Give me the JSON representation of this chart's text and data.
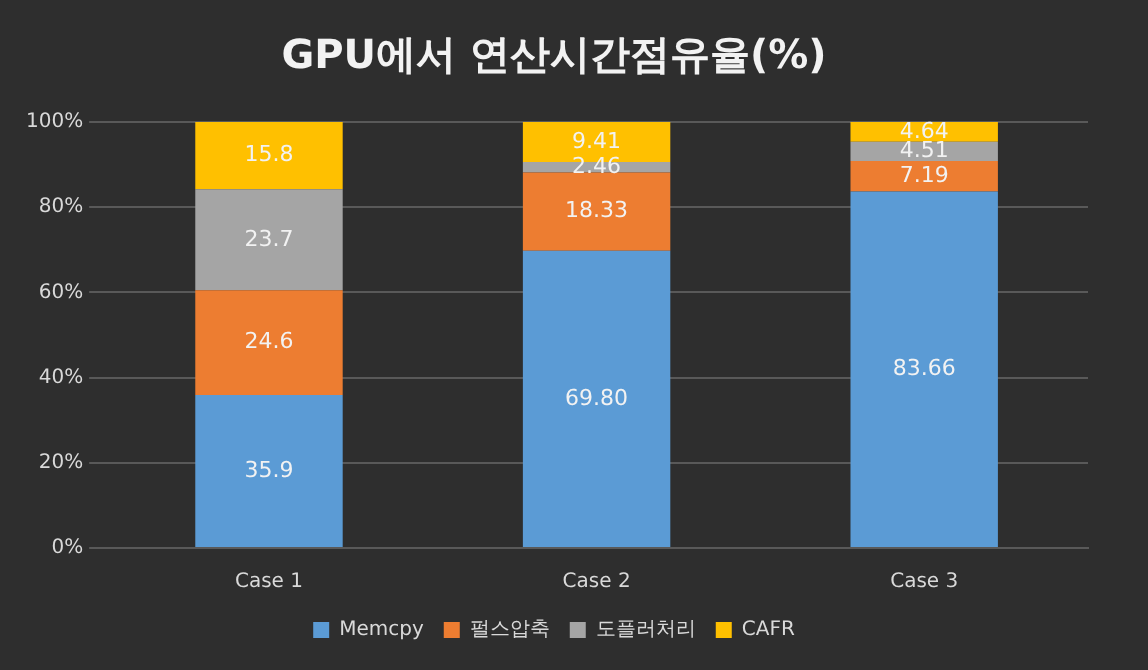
{
  "chart_data": {
    "type": "bar",
    "stacked": true,
    "title": "GPU에서 연산시간점유율(%)",
    "categories": [
      "Case 1",
      "Case 2",
      "Case 3"
    ],
    "series": [
      {
        "name": "Memcpy",
        "color": "#5b9bd5",
        "values": [
          35.9,
          69.8,
          83.66
        ]
      },
      {
        "name": "펄스압축",
        "color": "#ed7d31",
        "values": [
          24.6,
          18.33,
          7.19
        ]
      },
      {
        "name": "도플러처리",
        "color": "#a5a5a5",
        "values": [
          23.7,
          2.46,
          4.51
        ]
      },
      {
        "name": "CAFR",
        "color": "#ffc000",
        "values": [
          15.8,
          9.41,
          4.64
        ]
      }
    ],
    "value_labels": [
      [
        "35.9",
        "69.80",
        "83.66"
      ],
      [
        "24.6",
        "18.33",
        "7.19"
      ],
      [
        "23.7",
        "2.46",
        "4.51"
      ],
      [
        "15.8",
        "9.41",
        "4.64"
      ]
    ],
    "ylim": [
      0,
      100
    ],
    "yticks": [
      {
        "value": 0,
        "label": "0%"
      },
      {
        "value": 20,
        "label": "20%"
      },
      {
        "value": 40,
        "label": "40%"
      },
      {
        "value": 60,
        "label": "60%"
      },
      {
        "value": 80,
        "label": "80%"
      },
      {
        "value": 100,
        "label": "100%"
      }
    ],
    "grid": "y",
    "legend": "bottom"
  }
}
